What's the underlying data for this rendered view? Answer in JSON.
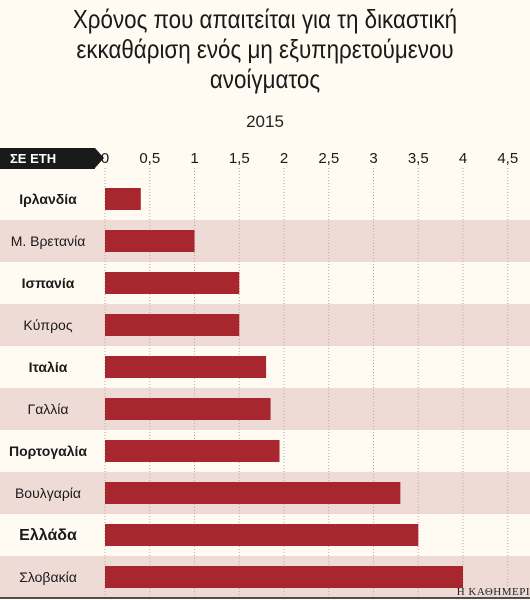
{
  "chart_data": {
    "type": "bar",
    "orientation": "horizontal",
    "title": "Χρόνος που απαιτείται για τη δικαστική εκκαθάριση ενός μη εξυπηρετούμενου ανοίγματος",
    "subtitle": "2015",
    "unit_label": "ΣΕ ΕΤΗ",
    "xlim": [
      0,
      4.5
    ],
    "ticks": [
      "0",
      "0,5",
      "1",
      "1,5",
      "2",
      "2,5",
      "3",
      "3,5",
      "4",
      "4,5"
    ],
    "categories": [
      "Ιρλανδία",
      "Μ. Βρετανία",
      "Ισπανία",
      "Κύπρος",
      "Ιταλία",
      "Γαλλία",
      "Πορτογαλία",
      "Βουλγαρία",
      "Ελλάδα",
      "Σλοβακία"
    ],
    "values": [
      0.4,
      1.0,
      1.5,
      1.5,
      1.8,
      1.85,
      1.95,
      3.3,
      3.5,
      4.0
    ],
    "bold_categories": [
      true,
      false,
      true,
      false,
      true,
      false,
      true,
      false,
      true,
      false
    ],
    "bar_color": "#a8262e",
    "row_colors": [
      "#fffaf2",
      "#eedbd5"
    ],
    "grid": true
  },
  "source": "Η ΚΑΘΗΜΕΡΙ"
}
